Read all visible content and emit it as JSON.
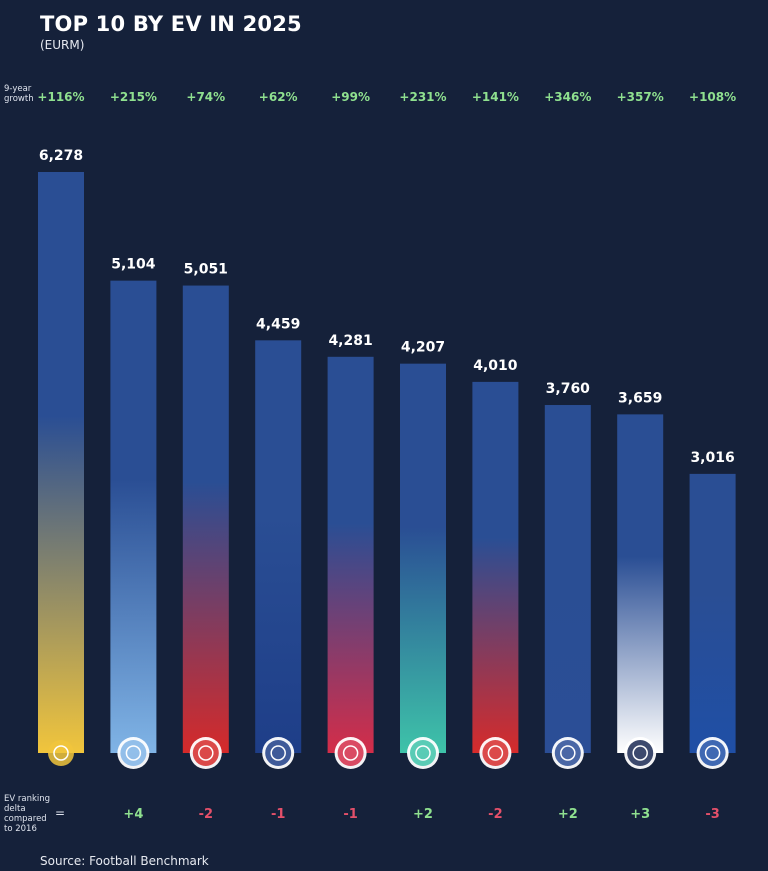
{
  "title": "TOP 10 BY EV IN 2025",
  "subtitle": "(EURM)",
  "growth_label_lines": [
    "9-year",
    "growth"
  ],
  "delta_label_lines": [
    "EV ranking",
    "delta",
    "compared",
    "to 2016"
  ],
  "delta_eq": "=",
  "source": "Source: Football Benchmark",
  "colors": {
    "background": "#15213a",
    "growth": "#8fe08f",
    "delta_positive": "#8fe08f",
    "delta_negative": "#e4506a",
    "bar_base": "#2a4e94"
  },
  "chart_data": {
    "type": "bar",
    "title": "TOP 10 BY EV IN 2025",
    "subtitle": "(EURM)",
    "ylim": [
      0,
      6278
    ],
    "grid": false,
    "categories_icons": [
      "real-madrid-crest-icon",
      "manchester-city-crest-icon",
      "manchester-united-crest-icon",
      "barcelona-crest-icon",
      "bayern-munich-crest-icon",
      "liverpool-crest-icon",
      "arsenal-crest-icon",
      "psg-crest-icon",
      "tottenham-crest-icon",
      "chelsea-crest-icon"
    ],
    "values": [
      6278,
      5104,
      5051,
      4459,
      4281,
      4207,
      4010,
      3760,
      3659,
      3016
    ],
    "value_labels": [
      "6,278",
      "5,104",
      "5,051",
      "4,459",
      "4,281",
      "4,207",
      "4,010",
      "3,760",
      "3,659",
      "3,016"
    ],
    "growth_9yr": [
      "+116%",
      "+215%",
      "+74%",
      "+62%",
      "+99%",
      "+231%",
      "+141%",
      "+346%",
      "+357%",
      "+108%"
    ],
    "ranking_delta": [
      "",
      "+4",
      "-2",
      "-1",
      "-1",
      "+2",
      "-2",
      "+2",
      "+3",
      "-3"
    ],
    "bar_colors": [
      [
        "#2a4e94",
        "#f1c53c"
      ],
      [
        "#2a4e94",
        "#80b4e6"
      ],
      [
        "#2a4e94",
        "#d52a2a"
      ],
      [
        "#2a4e94",
        "#1e3e88"
      ],
      [
        "#2a4e94",
        "#d42d49"
      ],
      [
        "#2a4e94",
        "#3ec3a9"
      ],
      [
        "#2a4e94",
        "#d62b2b"
      ],
      [
        "#2a4e94",
        "#2b4e96"
      ],
      [
        "#2a4e94",
        "#ffffff"
      ],
      [
        "#2a4e94",
        "#1f4fa6"
      ]
    ]
  }
}
